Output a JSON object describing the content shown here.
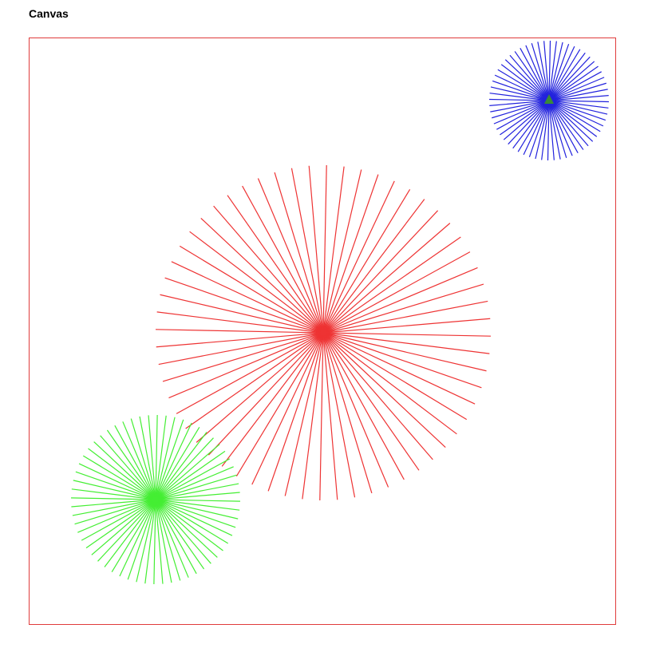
{
  "page": {
    "heading": "Canvas"
  },
  "canvas": {
    "border_color": "#e03c3c",
    "background": "#ffffff"
  },
  "starbursts": [
    {
      "name": "red-starburst",
      "color": "#ee3333",
      "ray_count": 60
    },
    {
      "name": "green-starburst",
      "color": "#44ee33",
      "ray_count": 60
    },
    {
      "name": "blue-starburst",
      "color": "#2222dd",
      "ray_count": 60
    }
  ],
  "marker": {
    "name": "triangle-marker",
    "color": "#3a8a3a"
  }
}
